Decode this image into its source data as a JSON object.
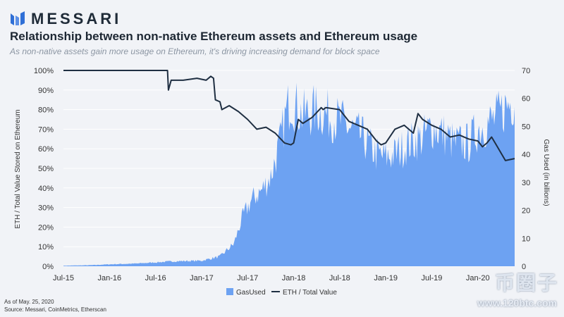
{
  "brand": {
    "name": "MESSARI"
  },
  "notes": {
    "date": "As of May. 25, 2020",
    "source": "Source: Messari, CoinMetrics, Etherscan"
  },
  "watermark": {
    "text": "币圈子",
    "url": "www.120btc.com"
  },
  "colors": {
    "area": "#6da2f2",
    "line": "#1f2f42",
    "grid": "#ffffff"
  },
  "chart_data": {
    "type": "area",
    "title": "Relationship between non-native Ethereum assets and Ethereum usage",
    "subtitle": "As non-native assets gain more usage on Ethereum, it's driving increasing demand for block space",
    "x_tick_labels": [
      "Jul-15",
      "Jan-16",
      "Jul-16",
      "Jan-17",
      "Jul-17",
      "Jan-18",
      "Jul-18",
      "Jan-19",
      "Jul-19",
      "Jan-20"
    ],
    "x_range": [
      2015.5,
      2020.4
    ],
    "y_left": {
      "label": "ETH / Total Value Stored on Ethereum",
      "range": [
        0,
        100
      ],
      "ticks": [
        "0%",
        "10%",
        "20%",
        "30%",
        "40%",
        "50%",
        "60%",
        "70%",
        "80%",
        "90%",
        "100%"
      ]
    },
    "y_right": {
      "label": "Gas Used (in billions)",
      "range": [
        0,
        70
      ],
      "ticks": [
        "0",
        "10",
        "20",
        "30",
        "40",
        "50",
        "60",
        "70"
      ]
    },
    "legend": [
      "GasUsed",
      "ETH / Total Value"
    ],
    "series": [
      {
        "name": "GasUsed",
        "axis": "right",
        "x": [
          2015.5,
          2015.8,
          2016.0,
          2016.3,
          2016.5,
          2016.7,
          2017.0,
          2017.2,
          2017.35,
          2017.45,
          2017.55,
          2017.65,
          2017.75,
          2017.85,
          2017.92,
          2017.97,
          2018.0,
          2018.1,
          2018.25,
          2018.5,
          2018.75,
          2018.9,
          2019.0,
          2019.1,
          2019.25,
          2019.4,
          2019.5,
          2019.6,
          2019.75,
          2019.9,
          2020.0,
          2020.1,
          2020.2,
          2020.3,
          2020.4
        ],
        "values": [
          0.2,
          0.4,
          0.7,
          1.0,
          1.4,
          1.8,
          2.0,
          3.5,
          8,
          18,
          24,
          27,
          32,
          44,
          55,
          60,
          58,
          54,
          56,
          52,
          46,
          40,
          39,
          40,
          44,
          46,
          50,
          48,
          44,
          44,
          49,
          51,
          53,
          57,
          60
        ]
      },
      {
        "name": "ETH / Total Value",
        "axis": "left",
        "x": [
          2015.5,
          2016.63,
          2016.64,
          2016.67,
          2016.8,
          2016.95,
          2017.05,
          2017.1,
          2017.13,
          2017.15,
          2017.2,
          2017.22,
          2017.3,
          2017.4,
          2017.5,
          2017.6,
          2017.7,
          2017.8,
          2017.9,
          2017.97,
          2018.0,
          2018.05,
          2018.1,
          2018.2,
          2018.3,
          2018.32,
          2018.35,
          2018.5,
          2018.6,
          2018.7,
          2018.8,
          2018.9,
          2018.95,
          2019.0,
          2019.1,
          2019.2,
          2019.3,
          2019.35,
          2019.4,
          2019.5,
          2019.6,
          2019.7,
          2019.8,
          2019.9,
          2020.0,
          2020.05,
          2020.1,
          2020.15,
          2020.2,
          2020.3,
          2020.4
        ],
        "values": [
          100,
          100,
          90,
          95,
          95,
          96,
          95,
          97,
          96,
          85,
          84,
          80,
          82,
          79,
          75,
          70,
          71,
          68,
          63,
          62,
          63,
          75,
          73,
          76,
          81,
          80,
          81,
          80,
          74,
          72,
          70,
          64,
          62,
          63,
          70,
          72,
          68,
          78,
          75,
          72,
          70,
          66,
          67,
          65,
          64,
          61,
          63,
          66,
          62,
          54,
          55
        ]
      }
    ]
  }
}
